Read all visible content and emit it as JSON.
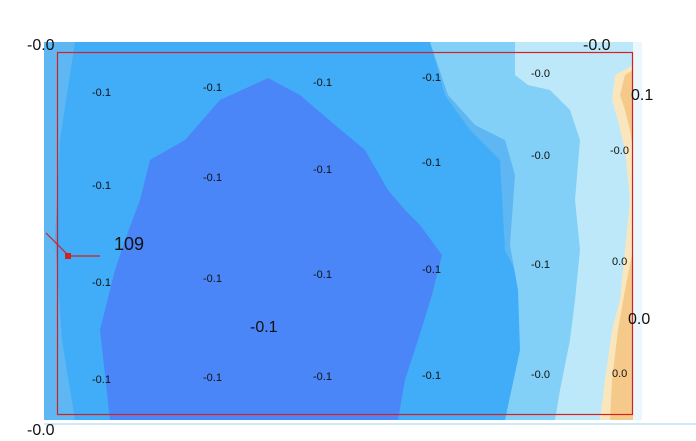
{
  "colors": {
    "background": "#ffffff",
    "band_outer": "#5eb7f2",
    "band_mid": "#41adf8",
    "band_core": "#4a86f7",
    "band_light": "#82d0f8",
    "band_pale": "#bde8fa",
    "band_warm": "#fae6bd",
    "band_orange": "#f5c98a",
    "border": "#d42020",
    "marker": "#d42020"
  },
  "contour": {
    "corner_labels": {
      "top_left": "-0.0",
      "top_right": "-0.0",
      "bottom_left": "-0.0"
    },
    "side_labels": {
      "right_top": "0.1",
      "right_middle": "0.0"
    },
    "center_label": "-0.1",
    "marker_label": "109",
    "grid_values": [
      [
        "-0.1",
        "-0.1",
        "-0.1",
        "-0.1",
        "-0.0",
        "0.1"
      ],
      [
        "-0.1",
        "-0.1",
        "-0.1",
        "-0.1",
        "-0.0",
        "-0.0"
      ],
      [
        "-0.1",
        "-0.1",
        "-0.1",
        "-0.1",
        "-0.1",
        "0.0"
      ],
      [
        "-0.1",
        "-0.1",
        "-0.1",
        "-0.1",
        "-0.0",
        "0.0"
      ]
    ]
  }
}
